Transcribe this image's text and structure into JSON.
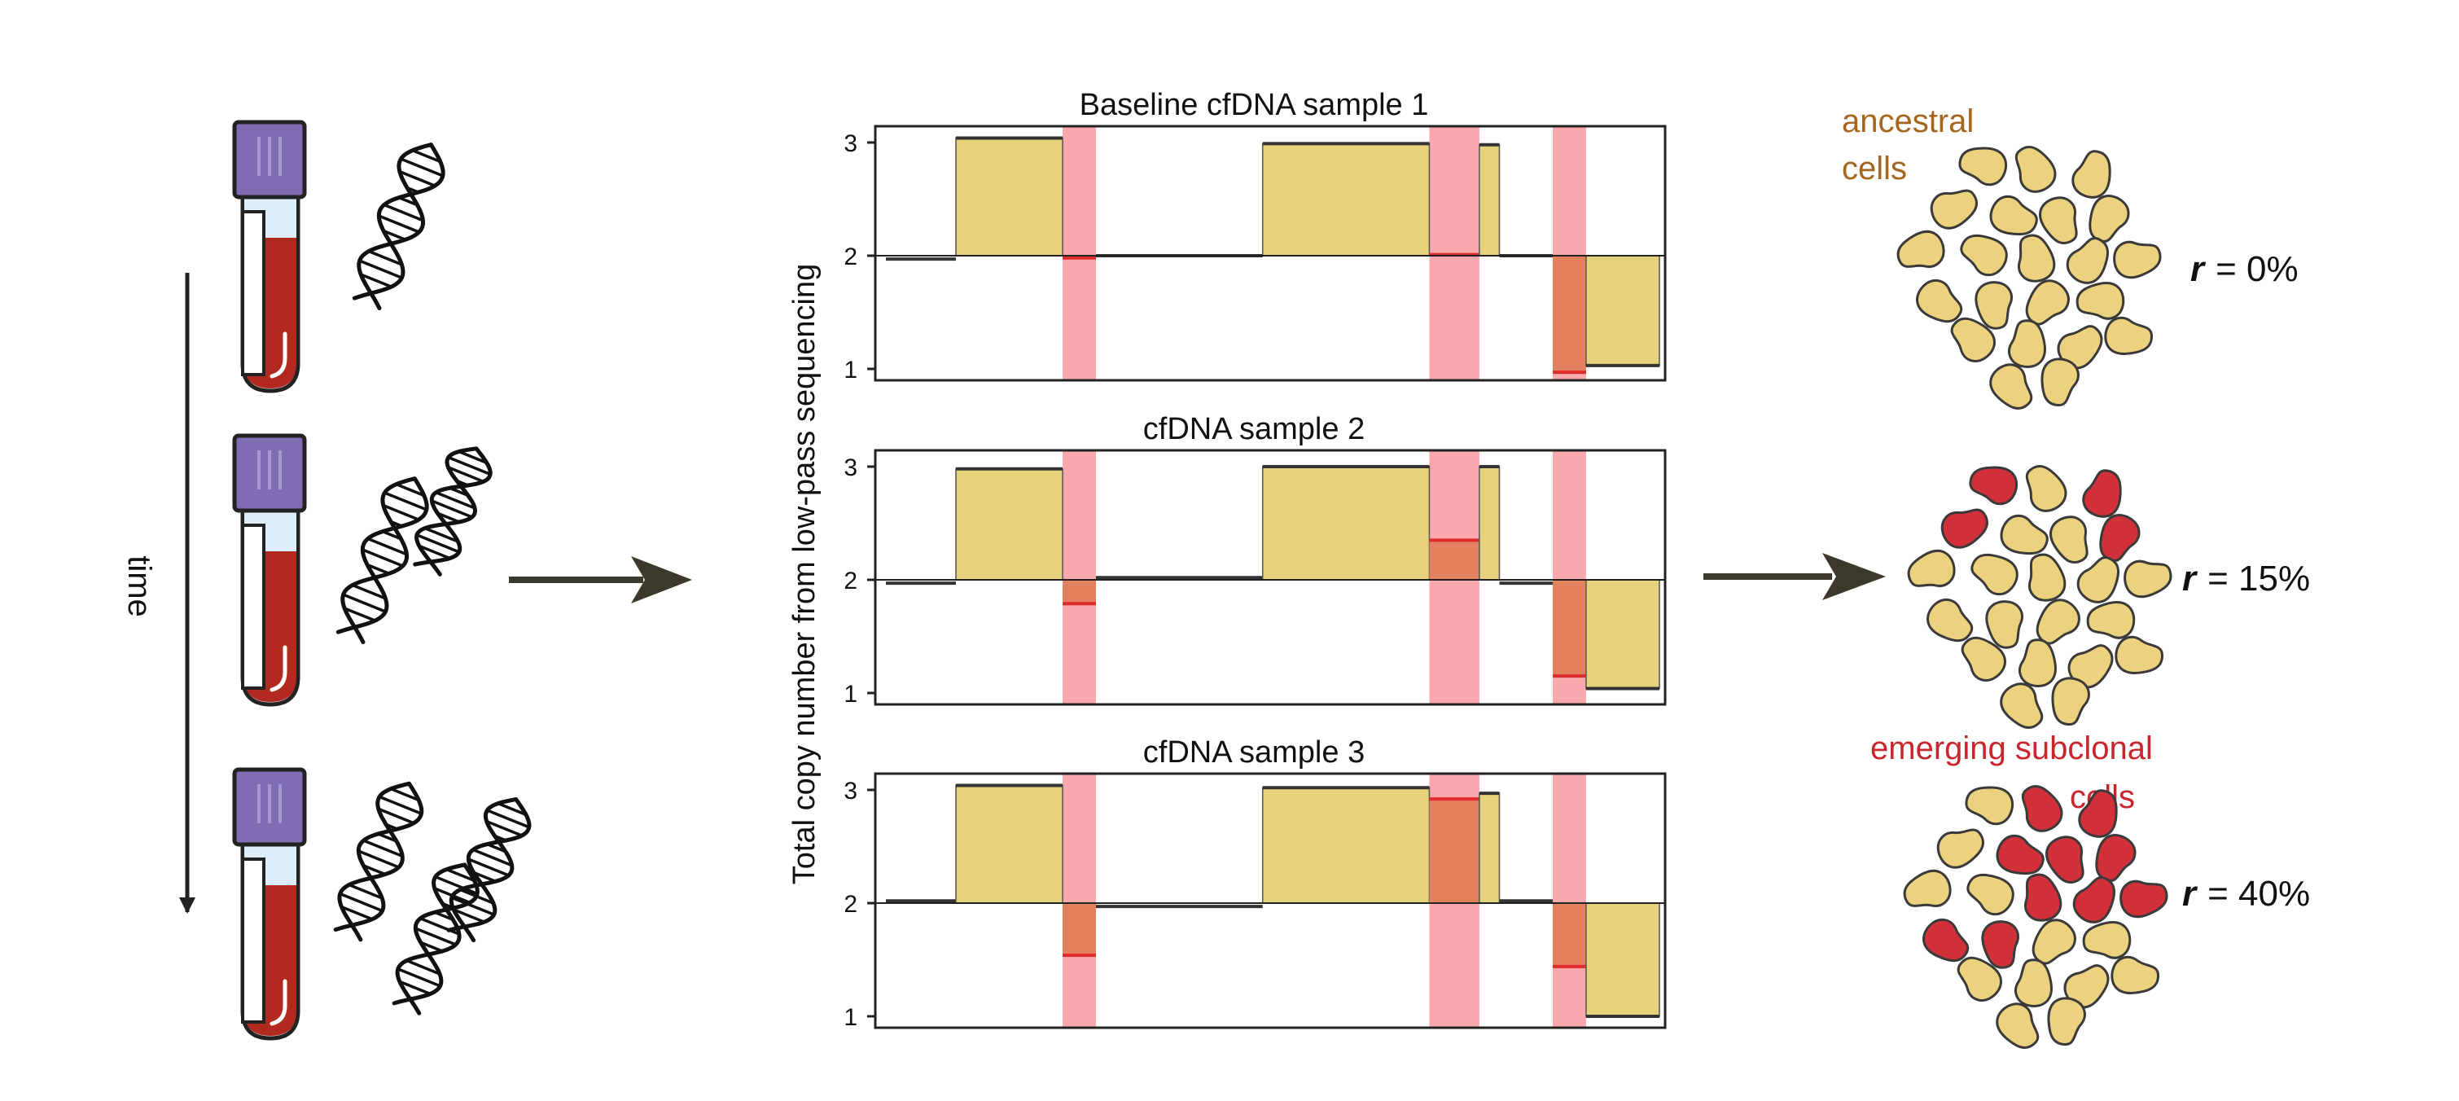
{
  "time_label": "time",
  "y_axis_label": "Total copy number from low-pass sequencing",
  "ancestral_label": [
    "ancestral",
    "cells"
  ],
  "subclonal_label": [
    "emerging subclonal",
    "cells"
  ],
  "r_symbol": "r",
  "colors": {
    "gain_fill": "#e6d27a",
    "highlight_band": "#f9a9ae",
    "subclonal_segment": "#e3815e",
    "subclonal_line": "#e02b2b",
    "subclonal_cell": "#d2313a",
    "ancestral_cell": "#ecd27e",
    "tube_cap": "#7f6cb3",
    "blood": "#b22a1f",
    "ancestral_text": "#a5651c",
    "subclonal_text": "#c8262c",
    "arrow": "#3b392c"
  },
  "panels": [
    {
      "title": "Baseline cfDNA sample 1",
      "r_value": "= 0%",
      "dna_count": 1,
      "red_cells": 0,
      "ticks": [
        "3",
        "2",
        "1"
      ],
      "segments": [
        {
          "start": 0.0,
          "end": 0.105,
          "cn": 1.97,
          "kind": "normal"
        },
        {
          "start": 0.105,
          "end": 0.265,
          "cn": 3.04,
          "kind": "normal"
        },
        {
          "start": 0.265,
          "end": 0.315,
          "cn": 1.98,
          "kind": "subclonal"
        },
        {
          "start": 0.315,
          "end": 0.565,
          "cn": 2.0,
          "kind": "normal"
        },
        {
          "start": 0.565,
          "end": 0.815,
          "cn": 2.99,
          "kind": "normal"
        },
        {
          "start": 0.815,
          "end": 0.89,
          "cn": 2.01,
          "kind": "subclonal"
        },
        {
          "start": 0.89,
          "end": 0.92,
          "cn": 2.98,
          "kind": "normal"
        },
        {
          "start": 0.92,
          "end": 1.0,
          "cn": 2.0,
          "kind": "normal"
        },
        {
          "start": 1.0,
          "end": 1.05,
          "cn": 0.97,
          "kind": "subclonal"
        },
        {
          "start": 1.05,
          "end": 1.16,
          "cn": 1.03,
          "kind": "normal"
        }
      ]
    },
    {
      "title": "cfDNA sample 2",
      "r_value": "= 15%",
      "dna_count": 2,
      "red_cells": 4,
      "ticks": [
        "3",
        "2",
        "1"
      ],
      "segments": [
        {
          "start": 0.0,
          "end": 0.105,
          "cn": 1.97,
          "kind": "normal"
        },
        {
          "start": 0.105,
          "end": 0.265,
          "cn": 2.98,
          "kind": "normal"
        },
        {
          "start": 0.265,
          "end": 0.315,
          "cn": 1.79,
          "kind": "subclonal"
        },
        {
          "start": 0.315,
          "end": 0.565,
          "cn": 2.02,
          "kind": "normal"
        },
        {
          "start": 0.565,
          "end": 0.815,
          "cn": 3.0,
          "kind": "normal"
        },
        {
          "start": 0.815,
          "end": 0.89,
          "cn": 2.35,
          "kind": "subclonal"
        },
        {
          "start": 0.89,
          "end": 0.92,
          "cn": 3.0,
          "kind": "normal"
        },
        {
          "start": 0.92,
          "end": 1.0,
          "cn": 1.97,
          "kind": "normal"
        },
        {
          "start": 1.0,
          "end": 1.05,
          "cn": 1.15,
          "kind": "subclonal"
        },
        {
          "start": 1.05,
          "end": 1.16,
          "cn": 1.04,
          "kind": "normal"
        }
      ]
    },
    {
      "title": "cfDNA sample 3",
      "r_value": "= 40%",
      "dna_count": 3,
      "red_cells": 10,
      "ticks": [
        "3",
        "2",
        "1"
      ],
      "segments": [
        {
          "start": 0.0,
          "end": 0.105,
          "cn": 2.02,
          "kind": "normal"
        },
        {
          "start": 0.105,
          "end": 0.265,
          "cn": 3.04,
          "kind": "normal"
        },
        {
          "start": 0.265,
          "end": 0.315,
          "cn": 1.54,
          "kind": "subclonal"
        },
        {
          "start": 0.315,
          "end": 0.565,
          "cn": 1.97,
          "kind": "normal"
        },
        {
          "start": 0.565,
          "end": 0.815,
          "cn": 3.02,
          "kind": "normal"
        },
        {
          "start": 0.815,
          "end": 0.89,
          "cn": 2.92,
          "kind": "subclonal"
        },
        {
          "start": 0.89,
          "end": 0.92,
          "cn": 2.97,
          "kind": "normal"
        },
        {
          "start": 0.92,
          "end": 1.0,
          "cn": 2.02,
          "kind": "normal"
        },
        {
          "start": 1.0,
          "end": 1.05,
          "cn": 1.44,
          "kind": "subclonal"
        },
        {
          "start": 1.05,
          "end": 1.16,
          "cn": 1.0,
          "kind": "normal"
        }
      ]
    }
  ]
}
